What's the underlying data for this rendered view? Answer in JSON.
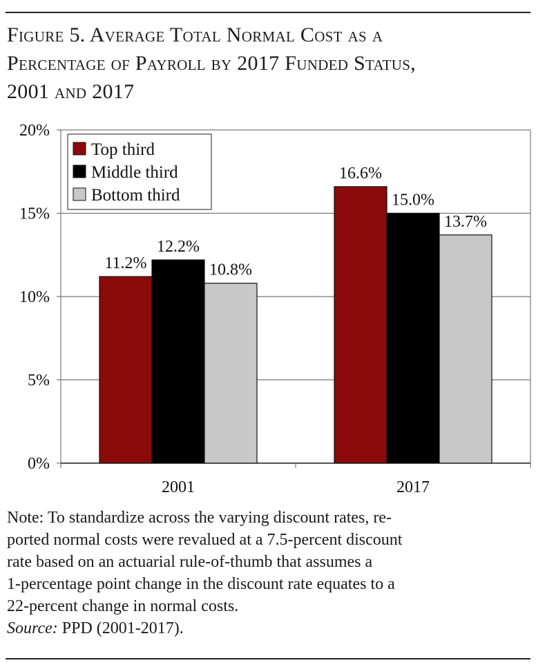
{
  "figure": {
    "title_line1": "Figure 5. Average Total Normal Cost as a",
    "title_line2": "Percentage of Payroll by 2017 Funded Status,",
    "title_line3": "2001 and 2017"
  },
  "chart_data": {
    "type": "bar",
    "categories": [
      "2001",
      "2017"
    ],
    "series": [
      {
        "name": "Top third",
        "values": [
          11.2,
          16.6
        ],
        "color": "#8b0a0a"
      },
      {
        "name": "Middle third",
        "values": [
          12.2,
          15.0
        ],
        "color": "#000000"
      },
      {
        "name": "Bottom third",
        "values": [
          10.8,
          13.7
        ],
        "color": "#c8c8c8"
      }
    ],
    "data_labels": [
      [
        "11.2%",
        "16.6%"
      ],
      [
        "12.2%",
        "15.0%"
      ],
      [
        "10.8%",
        "13.7%"
      ]
    ],
    "ylim": [
      0,
      20
    ],
    "yticks": [
      0,
      5,
      10,
      15,
      20
    ],
    "ytick_labels": [
      "0%",
      "5%",
      "10%",
      "15%",
      "20%"
    ],
    "grid": true,
    "legend_position": "top-left",
    "xlabel": "",
    "ylabel": ""
  },
  "note": {
    "line1": "Note: To standardize across the varying discount rates, re-",
    "line2": "ported normal costs were revalued at a 7.5-percent discount",
    "line3": "rate based on an actuarial rule-of-thumb that assumes a",
    "line4": "1-percentage point change in the discount rate equates to a",
    "line5": "22-percent change in normal costs.",
    "source_label": "Source:",
    "source_text": " PPD (2001-2017)."
  }
}
